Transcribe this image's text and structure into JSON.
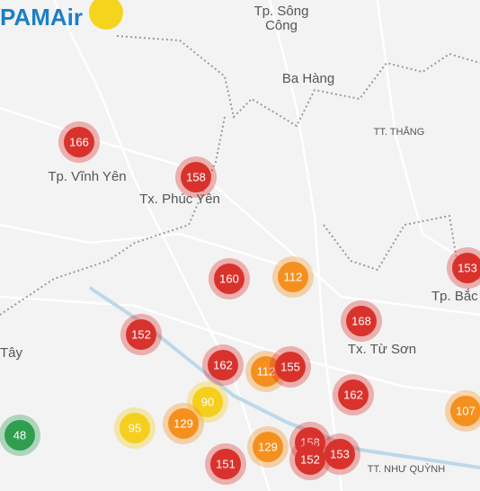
{
  "logo": "PAMAir",
  "places": [
    "Tp. Sông",
    "Công",
    "Ba Hàng",
    "TT. THẮNG",
    "Tp. Vĩnh Yên",
    "Tx. Phúc Yên",
    "Tp. Bắc",
    "Tx. Từ Sơn",
    "Tây",
    "TT. NHƯ QUỲNH"
  ],
  "markers": [
    {
      "label": "166",
      "color": "#d9322c"
    },
    {
      "label": "158",
      "color": "#d9322c"
    },
    {
      "label": "160",
      "color": "#d9322c"
    },
    {
      "label": "112",
      "color": "#f5901e"
    },
    {
      "label": "153",
      "color": "#d9322c"
    },
    {
      "label": "152",
      "color": "#d9322c"
    },
    {
      "label": "168",
      "color": "#d9322c"
    },
    {
      "label": "162",
      "color": "#d9322c"
    },
    {
      "label": "112",
      "color": "#f5901e"
    },
    {
      "label": "155",
      "color": "#d9322c"
    },
    {
      "label": "162",
      "color": "#d9322c"
    },
    {
      "label": "90",
      "color": "#f5cf1d"
    },
    {
      "label": "95",
      "color": "#f5cf1d"
    },
    {
      "label": "129",
      "color": "#f5901e"
    },
    {
      "label": "48",
      "color": "#2f9e4f"
    },
    {
      "label": "107",
      "color": "#f5901e"
    },
    {
      "label": "158",
      "color": "#d9322c"
    },
    {
      "label": "153",
      "color": "#d9322c"
    },
    {
      "label": "151",
      "color": "#d9322c"
    },
    {
      "label": "152",
      "color": "#d9322c"
    },
    {
      "label": "129",
      "color": "#f5901e"
    }
  ]
}
